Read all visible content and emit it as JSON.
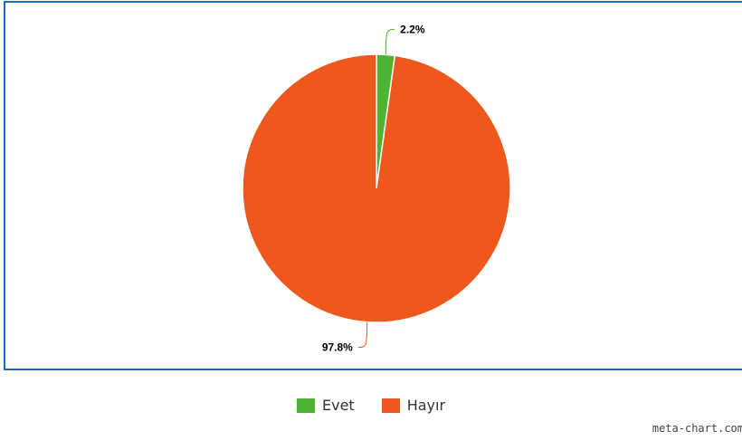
{
  "chart_data": {
    "type": "pie",
    "slices": [
      {
        "label": "Evet",
        "value": 2.2,
        "display": "2.2%",
        "color": "#4fb332"
      },
      {
        "label": "Hayır",
        "value": 97.8,
        "display": "97.8%",
        "color": "#ef581c"
      }
    ],
    "legend_position": "bottom"
  },
  "watermark": "meta-chart.com"
}
